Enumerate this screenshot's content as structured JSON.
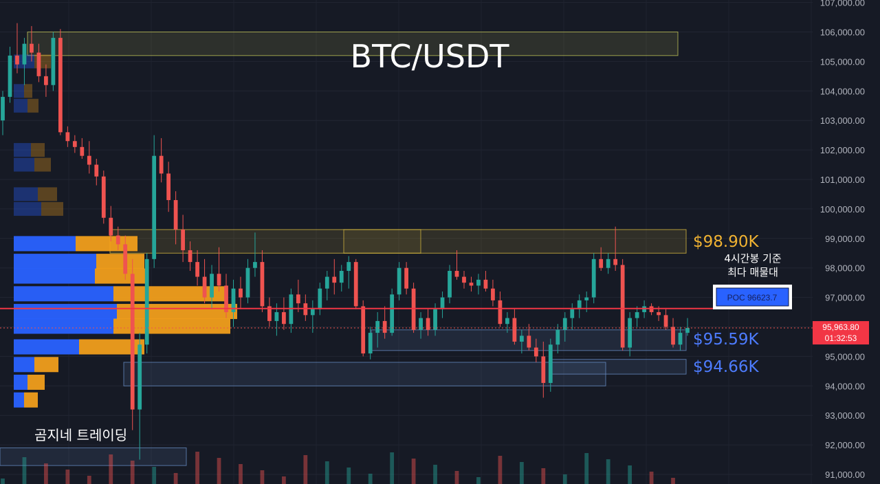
{
  "chart_data": {
    "type": "candlestick",
    "title": "BTC/USDT",
    "y_axis": {
      "ticks": [
        91000,
        92000,
        93000,
        94000,
        95000,
        96000,
        97000,
        98000,
        99000,
        100000,
        101000,
        102000,
        103000,
        104000,
        105000,
        106000,
        107000
      ],
      "tick_labels": [
        "91,000.00",
        "92,000.00",
        "93,000.00",
        "94,000.00",
        "95,000.00",
        "96,000.00",
        "97,000.00",
        "98,000.00",
        "99,000.00",
        "100,000.00",
        "101,000.00",
        "102,000.00",
        "103,000.00",
        "104,000.00",
        "105,000.00",
        "106,000.00",
        "107,000.00"
      ],
      "range": [
        91000,
        107000
      ],
      "position": "right"
    },
    "annotations": {
      "resistance": {
        "label": "$98.90K",
        "value": 98900
      },
      "support_1": {
        "label": "$95.59K",
        "value": 95590
      },
      "support_2": {
        "label": "$94.66K",
        "value": 94660
      },
      "poc": {
        "label": "POC  96623.7",
        "value": 96623.7
      },
      "poc_note_line1": "4시간봉 기준",
      "poc_note_line2": "최다 매물대",
      "current_price": {
        "label": "95,963.80",
        "countdown": "01:32:53",
        "value": 95963.8
      }
    },
    "watermark": "곰지네 트레이딩",
    "colors": {
      "up": "#26a69a",
      "down": "#ef5350",
      "poc_line": "#f23645",
      "resistance_text": "#f0b232",
      "support_text": "#4d7cff",
      "profile_blue": "#2962ff",
      "profile_orange": "#f7a21b"
    },
    "zones": [
      {
        "name": "top-zone",
        "from": 105200,
        "to": 106000
      },
      {
        "name": "resistance-zone",
        "from": 98500,
        "to": 99300
      },
      {
        "name": "support-zone-1",
        "from": 95200,
        "to": 95900
      },
      {
        "name": "support-zone-2",
        "from": 94400,
        "to": 94900
      },
      {
        "name": "support-zone-3",
        "from": 94000,
        "to": 94800
      },
      {
        "name": "low-zone",
        "from": 91300,
        "to": 91900
      }
    ],
    "candles": [
      [
        103000,
        104000,
        102500,
        103800
      ],
      [
        103800,
        105500,
        103600,
        105200
      ],
      [
        105200,
        106300,
        104600,
        104900
      ],
      [
        104900,
        105800,
        104200,
        105600
      ],
      [
        105600,
        106200,
        105000,
        105300
      ],
      [
        105300,
        105600,
        104300,
        104500
      ],
      [
        104500,
        104900,
        103800,
        104200
      ],
      [
        104200,
        106000,
        104000,
        105800
      ],
      [
        105800,
        106100,
        102500,
        102600
      ],
      [
        102600,
        102800,
        102100,
        102300
      ],
      [
        102300,
        102500,
        101900,
        102100
      ],
      [
        102100,
        102400,
        101700,
        101800
      ],
      [
        101800,
        102300,
        101200,
        101500
      ],
      [
        101500,
        101700,
        100800,
        101100
      ],
      [
        101100,
        101300,
        99500,
        99700
      ],
      [
        99700,
        100100,
        98900,
        99100
      ],
      [
        99100,
        99400,
        98600,
        98800
      ],
      [
        98800,
        99100,
        97600,
        97800
      ],
      [
        97800,
        98300,
        92500,
        93200
      ],
      [
        93200,
        95800,
        91500,
        95400
      ],
      [
        95400,
        98500,
        95100,
        98300
      ],
      [
        98300,
        102500,
        98000,
        101800
      ],
      [
        101800,
        102400,
        100900,
        101200
      ],
      [
        101200,
        101600,
        99900,
        100300
      ],
      [
        100300,
        100600,
        98800,
        99300
      ],
      [
        99300,
        99800,
        98200,
        98600
      ],
      [
        98600,
        98900,
        97900,
        98200
      ],
      [
        98200,
        98600,
        97400,
        97700
      ],
      [
        97700,
        98300,
        96800,
        97000
      ],
      [
        97000,
        98100,
        96600,
        97800
      ],
      [
        97800,
        98700,
        97200,
        97400
      ],
      [
        97400,
        97800,
        96300,
        96500
      ],
      [
        96500,
        97600,
        96000,
        97300
      ],
      [
        97300,
        97700,
        96600,
        97000
      ],
      [
        97000,
        98300,
        96800,
        98000
      ],
      [
        98000,
        99200,
        97700,
        98200
      ],
      [
        98200,
        98600,
        96500,
        96700
      ],
      [
        96700,
        97000,
        96000,
        96200
      ],
      [
        96200,
        96800,
        95700,
        96500
      ],
      [
        96500,
        97000,
        95900,
        96100
      ],
      [
        96100,
        97300,
        95800,
        97100
      ],
      [
        97100,
        97600,
        96500,
        96800
      ],
      [
        96800,
        97100,
        96200,
        96400
      ],
      [
        96400,
        96900,
        95800,
        96600
      ],
      [
        96600,
        97500,
        96400,
        97300
      ],
      [
        97300,
        97900,
        96900,
        97700
      ],
      [
        97700,
        98300,
        97100,
        97500
      ],
      [
        97500,
        98100,
        97200,
        97900
      ],
      [
        97900,
        98400,
        97300,
        98200
      ],
      [
        98200,
        98300,
        96600,
        96700
      ],
      [
        96700,
        96900,
        95000,
        95100
      ],
      [
        95100,
        96000,
        94900,
        95800
      ],
      [
        95800,
        96500,
        95300,
        96200
      ],
      [
        96200,
        96700,
        95600,
        95800
      ],
      [
        95800,
        97300,
        95700,
        97100
      ],
      [
        97100,
        98200,
        96900,
        98000
      ],
      [
        98000,
        98200,
        97100,
        97300
      ],
      [
        97300,
        97500,
        95800,
        95900
      ],
      [
        95900,
        96500,
        95600,
        96300
      ],
      [
        96300,
        96600,
        95700,
        95900
      ],
      [
        95900,
        96800,
        95700,
        96600
      ],
      [
        96600,
        97200,
        96300,
        97000
      ],
      [
        97000,
        98100,
        96800,
        97900
      ],
      [
        97900,
        98600,
        97600,
        97700
      ],
      [
        97700,
        97900,
        97300,
        97500
      ],
      [
        97500,
        97700,
        97200,
        97400
      ],
      [
        97400,
        97800,
        97100,
        97600
      ],
      [
        97600,
        97900,
        97200,
        97300
      ],
      [
        97300,
        97600,
        96700,
        96900
      ],
      [
        96900,
        97200,
        96000,
        96100
      ],
      [
        96100,
        96500,
        95800,
        96300
      ],
      [
        96300,
        96600,
        95400,
        95500
      ],
      [
        95500,
        95900,
        95100,
        95700
      ],
      [
        95700,
        96100,
        95200,
        95300
      ],
      [
        95300,
        95600,
        94800,
        95000
      ],
      [
        95000,
        95500,
        93600,
        94100
      ],
      [
        94100,
        95600,
        93800,
        95400
      ],
      [
        95400,
        96100,
        95100,
        95900
      ],
      [
        95900,
        96500,
        95500,
        96300
      ],
      [
        96300,
        96800,
        95900,
        96600
      ],
      [
        96600,
        97100,
        96300,
        96900
      ],
      [
        96900,
        97200,
        96500,
        97000
      ],
      [
        97000,
        98500,
        96800,
        98300
      ],
      [
        98300,
        98700,
        97900,
        98000
      ],
      [
        98000,
        98500,
        97800,
        98300
      ],
      [
        98300,
        99400,
        97900,
        98100
      ],
      [
        98100,
        98300,
        95200,
        95300
      ],
      [
        95300,
        96500,
        95000,
        96300
      ],
      [
        96300,
        96700,
        96000,
        96500
      ],
      [
        96500,
        96900,
        96300,
        96700
      ],
      [
        96700,
        96800,
        96400,
        96500
      ],
      [
        96500,
        96700,
        96200,
        96400
      ],
      [
        96400,
        96600,
        95900,
        96000
      ],
      [
        96000,
        96300,
        95300,
        95400
      ],
      [
        95400,
        96000,
        95200,
        95800
      ],
      [
        95800,
        96300,
        95700,
        95964
      ]
    ],
    "volume_profile": [
      {
        "price": 98800,
        "up": 90,
        "down": 90
      },
      {
        "price": 98200,
        "up": 120,
        "down": 70
      },
      {
        "price": 97700,
        "up": 118,
        "down": 75
      },
      {
        "price": 97100,
        "up": 145,
        "down": 165
      },
      {
        "price": 96500,
        "up": 150,
        "down": 175
      },
      {
        "price": 96000,
        "up": 145,
        "down": 170
      },
      {
        "price": 95300,
        "up": 95,
        "down": 95
      },
      {
        "price": 94700,
        "up": 30,
        "down": 35
      },
      {
        "price": 94100,
        "up": 20,
        "down": 25
      },
      {
        "price": 93500,
        "up": 15,
        "down": 20
      }
    ]
  }
}
